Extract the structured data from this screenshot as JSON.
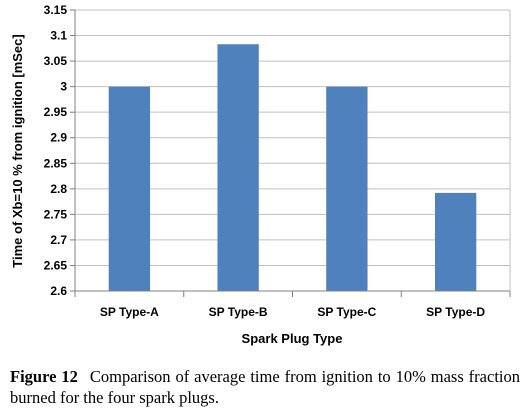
{
  "chart_data": {
    "type": "bar",
    "categories": [
      "SP Type-A",
      "SP Type-B",
      "SP Type-C",
      "SP Type-D"
    ],
    "values": [
      3.0,
      3.083,
      3.0,
      2.792
    ],
    "xlabel": "Spark Plug Type",
    "ylabel": "Time of Xb=10 % from ignition [mSec]",
    "ylim": [
      2.6,
      3.15
    ],
    "yticks": [
      "3.15",
      "3.1",
      "3.05",
      "3",
      "2.95",
      "2.9",
      "2.85",
      "2.8",
      "2.75",
      "2.7",
      "2.65",
      "2.6"
    ],
    "grid": true,
    "bar_color": "#4f81bd",
    "grid_color": "#c0c0c0",
    "axis_color": "#808080"
  },
  "caption": {
    "label": "Figure 12",
    "text": "Comparison of average time from ignition to 10% mass fraction burned for the four spark plugs."
  }
}
